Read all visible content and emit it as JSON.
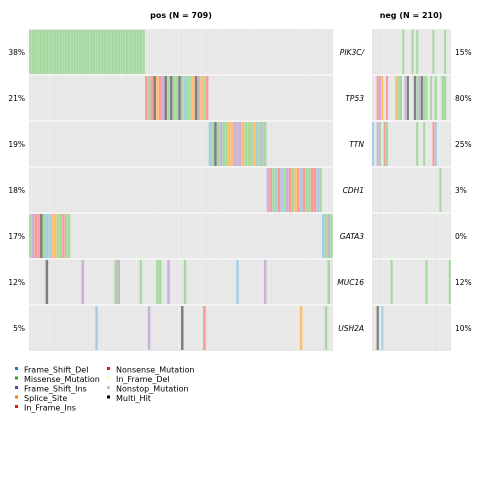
{
  "chart_data": {
    "type": "heatmap",
    "title": "",
    "xlabel": "",
    "ylabel": "",
    "panels": [
      {
        "title": "pos (N = 709)",
        "n": 709
      },
      {
        "title": "neg (N = 210)",
        "n": 210
      }
    ],
    "genes": [
      "PIK3CA",
      "TP53",
      "TTN",
      "CDH1",
      "GATA3",
      "MUC16",
      "USH2A"
    ],
    "gene_labels": [
      "PIK3C/",
      "TP53",
      "TTN",
      "CDH1",
      "GATA3",
      "MUC16",
      "USH2A"
    ],
    "pos_percent": [
      "38%",
      "21%",
      "19%",
      "18%",
      "17%",
      "12%",
      "5%"
    ],
    "neg_percent": [
      "15%",
      "80%",
      "25%",
      "3%",
      "0%",
      "12%",
      "10%"
    ],
    "pos_values": [
      38,
      21,
      19,
      18,
      17,
      12,
      5
    ],
    "neg_values": [
      15,
      80,
      25,
      3,
      0,
      12,
      10
    ],
    "legend": [
      {
        "label": "Frame_Shift_Del",
        "color": "#1f78b4"
      },
      {
        "label": "Missense_Mutation",
        "color": "#33a02c"
      },
      {
        "label": "Frame_Shift_Ins",
        "color": "#6a3d9a"
      },
      {
        "label": "Splice_Site",
        "color": "#ff7f00"
      },
      {
        "label": "In_Frame_Ins",
        "color": "#e31a1c"
      },
      {
        "label": "Nonsense_Mutation",
        "color": "#e31a1c"
      },
      {
        "label": "In_Frame_Del",
        "color": "#ffff99"
      },
      {
        "label": "Nonstop_Mutation",
        "color": "#a6cee3"
      },
      {
        "label": "Multi_Hit",
        "color": "#000000"
      }
    ],
    "colors": {
      "background": "#e6e6e6",
      "missense_light": "#a6d9a0",
      "frame_shift_del_light": "#a6cee3",
      "frame_shift_ins_light": "#cab2d6",
      "nonsense_light": "#fb9a99",
      "splice_light": "#fdbf6f",
      "multi_hit_light": "#7f7f7f"
    }
  }
}
